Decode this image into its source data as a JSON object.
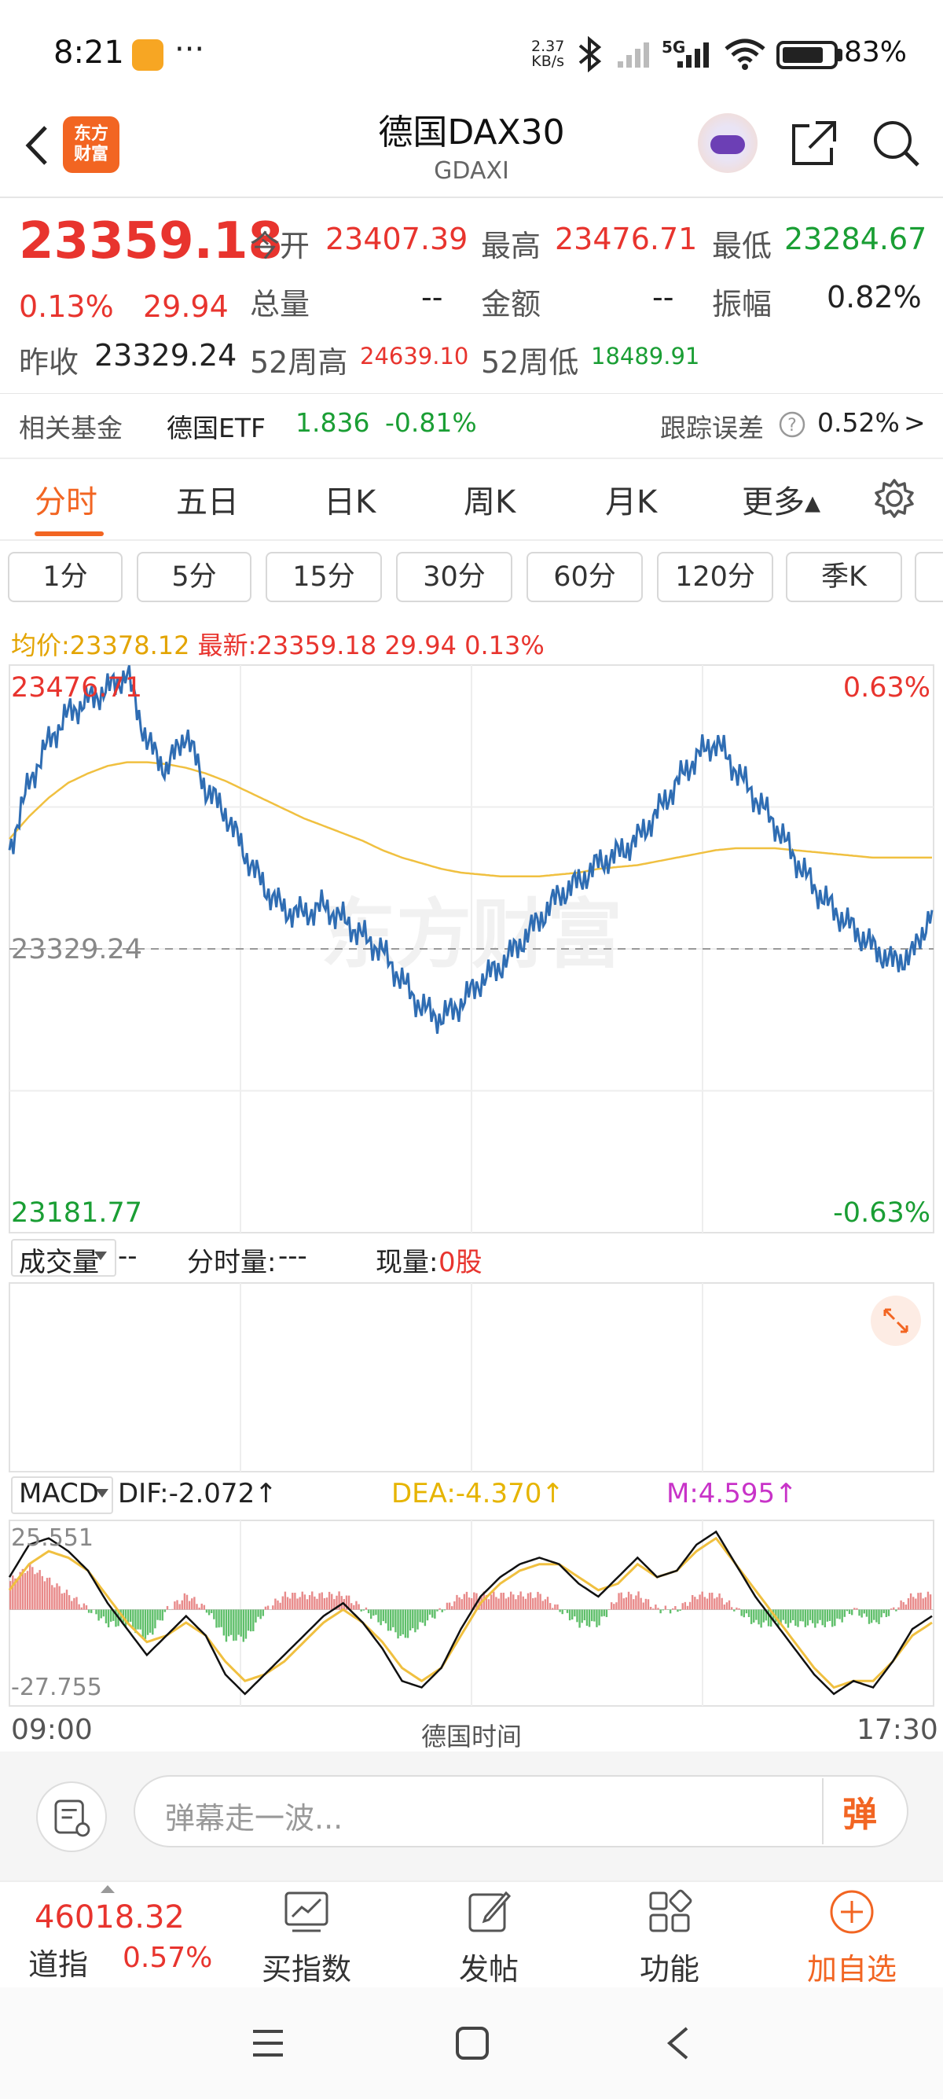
{
  "status_bar": {
    "time": "8:21",
    "dots": "···",
    "net_speed_value": "2.37",
    "net_speed_unit": "KB/s",
    "network": "5G",
    "battery_pct": "83%",
    "battery_level": 0.83
  },
  "header": {
    "logo_line1": "东方",
    "logo_line2": "财富",
    "title": "德国DAX30",
    "subtitle": "GDAXI"
  },
  "quote": {
    "price": "23359.18",
    "change_pct": "0.13%",
    "change": "29.94",
    "prev_close_label": "昨收",
    "prev_close": "23329.24",
    "open_label": "今开",
    "open": "23407.39",
    "high_label": "最高",
    "high": "23476.71",
    "low_label": "最低",
    "low": "23284.67",
    "volume_label": "总量",
    "volume": "--",
    "amount_label": "金额",
    "amount": "--",
    "amplitude_label": "振幅",
    "amplitude": "0.82%",
    "week52_high_label": "52周高",
    "week52_high": "24639.10",
    "week52_low_label": "52周低",
    "week52_low": "18489.91"
  },
  "fund": {
    "label": "相关基金",
    "name": "德国ETF",
    "price": "1.836",
    "change": "-0.81%",
    "tracking_label": "跟踪误差",
    "tracking_value": "0.52%",
    "chevron": ">"
  },
  "tabs": [
    {
      "label": "分时",
      "active": true
    },
    {
      "label": "五日"
    },
    {
      "label": "日K"
    },
    {
      "label": "周K"
    },
    {
      "label": "月K"
    },
    {
      "label": "更多▴"
    }
  ],
  "periods": [
    "1分",
    "5分",
    "15分",
    "30分",
    "60分",
    "120分",
    "季K"
  ],
  "info_line": {
    "avg_label": "均价:",
    "avg": "23378.12",
    "latest_label": "最新:",
    "latest": "23359.18",
    "change": "29.94",
    "change_pct": "0.13%"
  },
  "chart_data": {
    "type": "line",
    "title": "",
    "y_max_label": "23476.71",
    "y_mid_label": "23329.24",
    "y_min_label": "23181.77",
    "right_max_label": "0.63%",
    "right_min_label": "-0.63%",
    "ylim": [
      23181.77,
      23476.71
    ],
    "baseline": 23329.24,
    "x_start_label": "09:00",
    "x_end_label": "17:30",
    "x_center_label": "德国时间",
    "watermark": "东方财富",
    "price_series": [
      23382,
      23418,
      23440,
      23455,
      23462,
      23468,
      23476,
      23440,
      23425,
      23445,
      23415,
      23402,
      23380,
      23362,
      23350,
      23348,
      23352,
      23345,
      23336,
      23328,
      23312,
      23298,
      23292,
      23300,
      23312,
      23320,
      23332,
      23345,
      23358,
      23365,
      23375,
      23380,
      23388,
      23402,
      23418,
      23432,
      23440,
      23425,
      23410,
      23396,
      23378,
      23362,
      23350,
      23340,
      23330,
      23322,
      23326,
      23350
    ],
    "avg_series": [
      23388,
      23400,
      23410,
      23418,
      23423,
      23427,
      23429,
      23429,
      23428,
      23426,
      23423,
      23419,
      23414,
      23409,
      23404,
      23399,
      23395,
      23391,
      23387,
      23382,
      23378,
      23375,
      23372,
      23370,
      23369,
      23368,
      23368,
      23368,
      23369,
      23370,
      23372,
      23373,
      23374,
      23376,
      23378,
      23380,
      23382,
      23383,
      23383,
      23383,
      23382,
      23381,
      23380,
      23379,
      23378,
      23378,
      23378,
      23378
    ]
  },
  "volume_panel": {
    "selector": "成交量",
    "value": "--",
    "minute_vol_label": "分时量:",
    "minute_vol": "---",
    "current_vol_label": "现量:",
    "current_vol": "0股"
  },
  "macd_panel": {
    "selector": "MACD",
    "dif_label": "DIF:",
    "dif": "-2.072",
    "dea_label": "DEA:",
    "dea": "-4.370",
    "m_label": "M:",
    "m": "4.595",
    "up_arrow": "↑",
    "y_max_label": "25.551",
    "y_min_label": "-27.755",
    "ylim": [
      -27.755,
      25.551
    ],
    "dif_series": [
      10,
      20,
      22,
      18,
      12,
      2,
      -6,
      -14,
      -8,
      -2,
      -8,
      -20,
      -26,
      -20,
      -14,
      -8,
      -2,
      2,
      -4,
      -12,
      -22,
      -24,
      -18,
      -6,
      4,
      10,
      14,
      16,
      14,
      8,
      4,
      10,
      16,
      10,
      12,
      20,
      24,
      14,
      4,
      -4,
      -12,
      -20,
      -26,
      -22,
      -24,
      -16,
      -6,
      -2
    ],
    "dea_series": [
      6,
      14,
      18,
      16,
      12,
      4,
      -4,
      -10,
      -8,
      -4,
      -8,
      -16,
      -22,
      -20,
      -16,
      -10,
      -4,
      0,
      -4,
      -10,
      -18,
      -22,
      -18,
      -8,
      2,
      8,
      12,
      14,
      14,
      10,
      6,
      8,
      14,
      10,
      12,
      18,
      22,
      14,
      6,
      -2,
      -10,
      -18,
      -24,
      -22,
      -22,
      -16,
      -8,
      -4
    ]
  },
  "comment": {
    "placeholder": "弹幕走一波...",
    "danmu_label": "弹"
  },
  "bottom_bar": {
    "index_value": "46018.32",
    "index_name": "道指",
    "index_change": "0.57%",
    "items": [
      "买指数",
      "发帖",
      "功能",
      "加自选"
    ]
  }
}
